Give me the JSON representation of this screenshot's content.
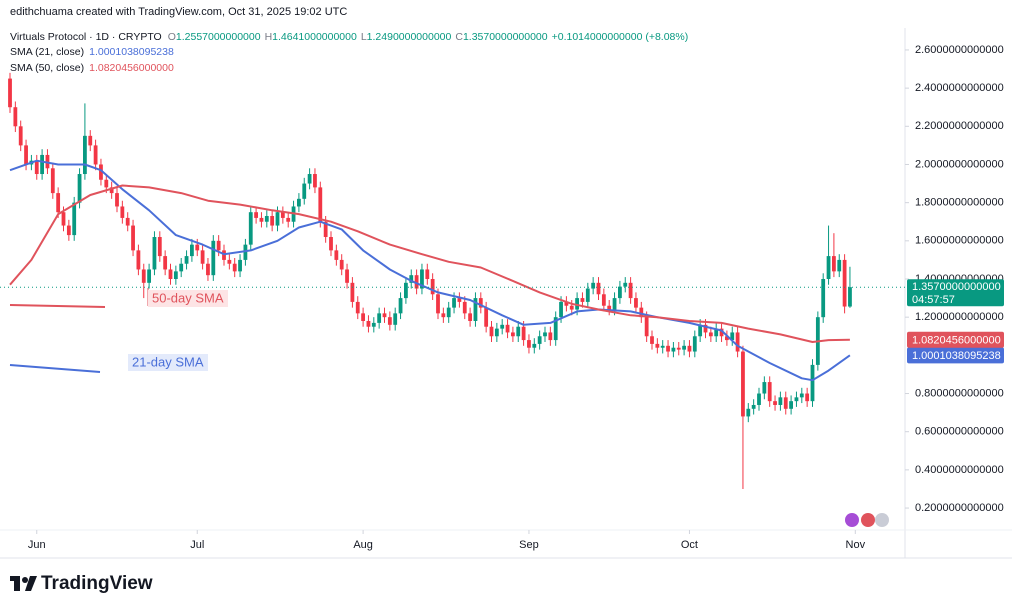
{
  "header": {
    "creator": "edithchuama created with TradingView.com, Oct 31, 2025 19:02 UTC"
  },
  "footer": {
    "logo": "TradingView"
  },
  "chart_data": {
    "type": "candlestick",
    "title": "Virtuals Protocol · 1D · CRYPTO",
    "ohlc_letters": [
      "O",
      "H",
      "L",
      "C"
    ],
    "ohlc_labels": [
      "1.2557000000000",
      "1.4641000000000",
      "1.2490000000000",
      "1.3570000000000"
    ],
    "change_label": "+0.1014000000000 (+8.08%)",
    "countdown": "04:57:57",
    "up_color": "#089981",
    "down_color": "#f23645",
    "xlim": [
      -1.87,
      167.29
    ],
    "ylim": [
      0.085,
      2.715
    ],
    "grid": false,
    "xticks": [
      {
        "value": 5,
        "label": "Jun"
      },
      {
        "value": 35,
        "label": "Jul"
      },
      {
        "value": 66,
        "label": "Aug"
      },
      {
        "value": 97,
        "label": "Sep"
      },
      {
        "value": 127,
        "label": "Oct"
      },
      {
        "value": 158,
        "label": "Nov"
      }
    ],
    "yticks": [
      {
        "value": 0.2,
        "label": "0.2000000000000"
      },
      {
        "value": 0.4,
        "label": "0.4000000000000"
      },
      {
        "value": 0.6,
        "label": "0.6000000000000"
      },
      {
        "value": 0.8,
        "label": "0.8000000000000"
      },
      {
        "value": 1.2,
        "label": "1.2000000000000"
      },
      {
        "value": 1.4,
        "label": "1.4000000000000"
      },
      {
        "value": 1.6,
        "label": "1.6000000000000"
      },
      {
        "value": 1.8,
        "label": "1.8000000000000"
      },
      {
        "value": 2.0,
        "label": "2.0000000000000"
      },
      {
        "value": 2.2,
        "label": "2.2000000000000"
      },
      {
        "value": 2.4,
        "label": "2.4000000000000"
      },
      {
        "value": 2.6,
        "label": "2.6000000000000"
      }
    ],
    "open": [
      2.45,
      2.3,
      2.2,
      2.1,
      2.0,
      2.02,
      1.95,
      2.05,
      1.98,
      1.85,
      1.75,
      1.68,
      1.63,
      1.8,
      1.95,
      2.15,
      2.1,
      2.0,
      1.92,
      1.88,
      1.85,
      1.78,
      1.72,
      1.68,
      1.55,
      1.45,
      1.38,
      1.45,
      1.62,
      1.52,
      1.45,
      1.4,
      1.44,
      1.48,
      1.52,
      1.58,
      1.55,
      1.48,
      1.42,
      1.6,
      1.55,
      1.5,
      1.48,
      1.44,
      1.5,
      1.58,
      1.75,
      1.72,
      1.7,
      1.73,
      1.68,
      1.75,
      1.72,
      1.7,
      1.78,
      1.82,
      1.9,
      1.95,
      1.88,
      1.7,
      1.62,
      1.55,
      1.5,
      1.45,
      1.38,
      1.28,
      1.22,
      1.18,
      1.15,
      1.17,
      1.22,
      1.2,
      1.16,
      1.22,
      1.3,
      1.38,
      1.42,
      1.35,
      1.45,
      1.4,
      1.32,
      1.22,
      1.2,
      1.25,
      1.3,
      1.28,
      1.22,
      1.18,
      1.3,
      1.25,
      1.15,
      1.1,
      1.14,
      1.16,
      1.12,
      1.1,
      1.15,
      1.08,
      1.04,
      1.06,
      1.1,
      1.12,
      1.08,
      1.2,
      1.28,
      1.26,
      1.24,
      1.3,
      1.28,
      1.35,
      1.38,
      1.32,
      1.26,
      1.24,
      1.3,
      1.36,
      1.38,
      1.3,
      1.25,
      1.2,
      1.1,
      1.06,
      1.04,
      1.05,
      1.02,
      1.04,
      1.03,
      1.05,
      1.02,
      1.1,
      1.16,
      1.12,
      1.1,
      1.14,
      1.1,
      1.08,
      1.12,
      1.02,
      0.68,
      0.72,
      0.74,
      0.8,
      0.86,
      0.76,
      0.74,
      0.78,
      0.72,
      0.76,
      0.78,
      0.8,
      0.76,
      0.95,
      1.2,
      1.4,
      1.52,
      1.44,
      1.5,
      1.2557
    ],
    "high": [
      2.48,
      2.33,
      2.23,
      2.13,
      2.05,
      2.05,
      2.08,
      2.08,
      2.01,
      1.88,
      1.78,
      1.71,
      1.83,
      1.98,
      2.32,
      2.18,
      2.13,
      2.03,
      1.95,
      1.91,
      1.88,
      1.81,
      1.75,
      1.71,
      1.58,
      1.48,
      1.48,
      1.65,
      1.65,
      1.55,
      1.48,
      1.47,
      1.51,
      1.55,
      1.61,
      1.61,
      1.58,
      1.51,
      1.63,
      1.63,
      1.58,
      1.53,
      1.51,
      1.53,
      1.61,
      1.78,
      1.78,
      1.75,
      1.76,
      1.76,
      1.78,
      1.78,
      1.75,
      1.81,
      1.85,
      1.93,
      1.98,
      1.98,
      1.91,
      1.73,
      1.65,
      1.58,
      1.53,
      1.48,
      1.41,
      1.31,
      1.25,
      1.21,
      1.2,
      1.25,
      1.25,
      1.23,
      1.25,
      1.33,
      1.41,
      1.45,
      1.45,
      1.48,
      1.48,
      1.43,
      1.35,
      1.25,
      1.28,
      1.33,
      1.33,
      1.31,
      1.25,
      1.33,
      1.33,
      1.28,
      1.18,
      1.17,
      1.19,
      1.19,
      1.15,
      1.18,
      1.18,
      1.11,
      1.09,
      1.13,
      1.15,
      1.15,
      1.23,
      1.31,
      1.31,
      1.29,
      1.33,
      1.33,
      1.38,
      1.41,
      1.41,
      1.35,
      1.29,
      1.33,
      1.39,
      1.41,
      1.41,
      1.33,
      1.28,
      1.23,
      1.13,
      1.09,
      1.08,
      1.08,
      1.07,
      1.07,
      1.08,
      1.08,
      1.13,
      1.19,
      1.19,
      1.15,
      1.17,
      1.17,
      1.13,
      1.15,
      1.15,
      1.05,
      0.75,
      0.77,
      0.83,
      0.89,
      0.89,
      0.79,
      0.81,
      0.81,
      0.79,
      0.81,
      0.83,
      0.83,
      0.98,
      1.23,
      1.43,
      1.68,
      1.64,
      1.53,
      1.53,
      1.4641
    ],
    "low": [
      2.27,
      2.17,
      2.07,
      1.97,
      1.97,
      1.92,
      1.92,
      1.95,
      1.82,
      1.72,
      1.65,
      1.6,
      1.6,
      1.77,
      1.92,
      2.07,
      1.97,
      1.89,
      1.85,
      1.82,
      1.75,
      1.69,
      1.65,
      1.52,
      1.42,
      1.3,
      1.35,
      1.42,
      1.49,
      1.42,
      1.37,
      1.37,
      1.41,
      1.45,
      1.49,
      1.52,
      1.45,
      1.39,
      1.39,
      1.52,
      1.47,
      1.45,
      1.41,
      1.41,
      1.47,
      1.55,
      1.69,
      1.67,
      1.67,
      1.65,
      1.65,
      1.69,
      1.67,
      1.67,
      1.75,
      1.79,
      1.87,
      1.85,
      1.67,
      1.59,
      1.52,
      1.47,
      1.42,
      1.35,
      1.25,
      1.19,
      1.15,
      1.12,
      1.12,
      1.14,
      1.17,
      1.13,
      1.13,
      1.19,
      1.27,
      1.35,
      1.32,
      1.32,
      1.37,
      1.29,
      1.19,
      1.17,
      1.17,
      1.22,
      1.25,
      1.19,
      1.15,
      1.15,
      1.22,
      1.12,
      1.07,
      1.07,
      1.11,
      1.09,
      1.07,
      1.07,
      1.05,
      1.01,
      1.01,
      1.03,
      1.07,
      1.05,
      1.05,
      1.17,
      1.23,
      1.21,
      1.21,
      1.25,
      1.25,
      1.32,
      1.29,
      1.23,
      1.21,
      1.21,
      1.27,
      1.33,
      1.27,
      1.22,
      1.17,
      1.07,
      1.03,
      1.01,
      1.01,
      0.99,
      0.99,
      1.0,
      1.0,
      0.99,
      0.99,
      1.07,
      1.09,
      1.07,
      1.07,
      1.07,
      1.05,
      1.05,
      0.99,
      0.3,
      0.65,
      0.69,
      0.71,
      0.77,
      0.73,
      0.71,
      0.71,
      0.69,
      0.69,
      0.73,
      0.75,
      0.73,
      0.73,
      0.92,
      1.17,
      1.37,
      1.41,
      1.41,
      1.22,
      1.249
    ],
    "close": [
      2.3,
      2.2,
      2.1,
      2.0,
      2.02,
      1.95,
      2.05,
      1.98,
      1.85,
      1.75,
      1.68,
      1.63,
      1.8,
      1.95,
      2.15,
      2.1,
      2.0,
      1.92,
      1.88,
      1.85,
      1.78,
      1.72,
      1.68,
      1.55,
      1.45,
      1.38,
      1.45,
      1.62,
      1.52,
      1.45,
      1.4,
      1.44,
      1.48,
      1.52,
      1.58,
      1.55,
      1.48,
      1.42,
      1.6,
      1.55,
      1.5,
      1.48,
      1.44,
      1.5,
      1.58,
      1.75,
      1.72,
      1.7,
      1.73,
      1.68,
      1.75,
      1.72,
      1.7,
      1.78,
      1.82,
      1.9,
      1.95,
      1.88,
      1.7,
      1.62,
      1.55,
      1.5,
      1.45,
      1.38,
      1.28,
      1.22,
      1.18,
      1.15,
      1.17,
      1.22,
      1.2,
      1.16,
      1.22,
      1.3,
      1.38,
      1.42,
      1.35,
      1.45,
      1.4,
      1.32,
      1.22,
      1.2,
      1.25,
      1.3,
      1.28,
      1.22,
      1.18,
      1.3,
      1.25,
      1.15,
      1.1,
      1.14,
      1.16,
      1.12,
      1.1,
      1.15,
      1.08,
      1.04,
      1.06,
      1.1,
      1.12,
      1.08,
      1.2,
      1.28,
      1.26,
      1.24,
      1.3,
      1.28,
      1.35,
      1.38,
      1.32,
      1.26,
      1.24,
      1.3,
      1.36,
      1.38,
      1.3,
      1.25,
      1.2,
      1.1,
      1.06,
      1.04,
      1.05,
      1.02,
      1.04,
      1.03,
      1.05,
      1.02,
      1.1,
      1.16,
      1.12,
      1.1,
      1.14,
      1.1,
      1.08,
      1.12,
      1.02,
      0.68,
      0.72,
      0.74,
      0.8,
      0.86,
      0.76,
      0.74,
      0.78,
      0.72,
      0.76,
      0.78,
      0.8,
      0.76,
      0.95,
      1.2,
      1.4,
      1.52,
      1.44,
      1.5,
      1.2557,
      1.357
    ],
    "series": [
      {
        "name": "SMA (21, close)",
        "color": "#4a6fd8",
        "last_label": "1.0001038095238",
        "x": [
          0,
          5,
          9,
          14,
          17,
          21,
          26,
          31,
          36,
          40,
          45,
          50,
          54,
          58,
          62,
          66,
          71,
          75,
          80,
          86,
          92,
          96,
          101,
          106,
          110,
          116,
          121,
          127,
          133,
          136,
          142,
          148,
          150,
          153,
          157
        ],
        "values": [
          1.97,
          2.02,
          2.0,
          2.0,
          1.97,
          1.87,
          1.76,
          1.63,
          1.58,
          1.53,
          1.55,
          1.6,
          1.67,
          1.7,
          1.66,
          1.55,
          1.45,
          1.39,
          1.33,
          1.29,
          1.21,
          1.16,
          1.17,
          1.23,
          1.24,
          1.23,
          1.2,
          1.17,
          1.13,
          1.05,
          0.96,
          0.88,
          0.87,
          0.92,
          1.0001038095238
        ]
      },
      {
        "name": "SMA (50, close)",
        "color": "#e0535c",
        "last_label": "1.0820456000000",
        "x": [
          0,
          4,
          9,
          15,
          21,
          26,
          32,
          37,
          43,
          49,
          54,
          60,
          65,
          71,
          77,
          82,
          88,
          94,
          99,
          105,
          110,
          116,
          121,
          127,
          133,
          138,
          144,
          150,
          153,
          157
        ],
        "values": [
          1.37,
          1.5,
          1.74,
          1.84,
          1.89,
          1.88,
          1.85,
          1.81,
          1.79,
          1.76,
          1.74,
          1.7,
          1.65,
          1.58,
          1.53,
          1.49,
          1.46,
          1.39,
          1.33,
          1.27,
          1.24,
          1.21,
          1.2,
          1.18,
          1.17,
          1.14,
          1.11,
          1.07,
          1.08,
          1.0820456
        ]
      }
    ],
    "annotations": [
      "50-day SMA",
      "21-day SMA"
    ]
  }
}
